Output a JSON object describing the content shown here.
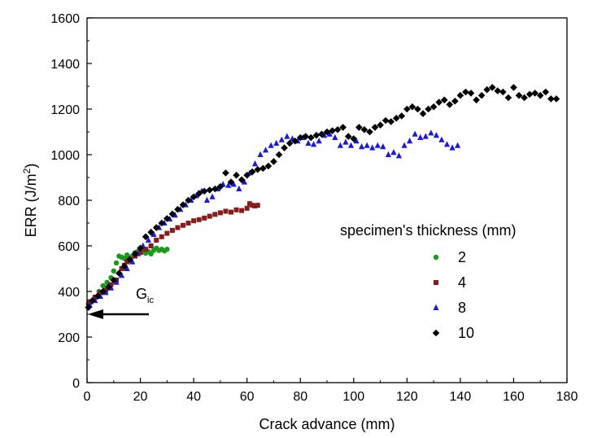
{
  "chart_data": {
    "type": "scatter",
    "title": "",
    "xlabel": "Crack advance (mm)",
    "ylabel": "ERR (J/m2)",
    "ylabel_parts": {
      "main": "ERR  (J/m",
      "sup": "2",
      "end": ")"
    },
    "xlim": [
      0,
      180
    ],
    "ylim": [
      0,
      1600
    ],
    "xticks": [
      0,
      20,
      40,
      60,
      80,
      100,
      120,
      140,
      160,
      180
    ],
    "yticks": [
      0,
      200,
      400,
      600,
      800,
      1000,
      1200,
      1400,
      1600
    ],
    "grid": false,
    "legend": {
      "title": "specimen's thickness (mm)",
      "placement": "center-right"
    },
    "annotation": {
      "main": "G",
      "sub": "ic",
      "value": 300
    },
    "series": [
      {
        "name": "2",
        "color": "#1a9a1a",
        "marker": "circle",
        "points": [
          [
            0.5,
            345
          ],
          [
            1.5,
            352
          ],
          [
            3,
            375
          ],
          [
            4.5,
            400
          ],
          [
            6,
            425
          ],
          [
            7.5,
            440
          ],
          [
            9,
            460
          ],
          [
            10,
            490
          ],
          [
            11,
            525
          ],
          [
            12,
            555
          ],
          [
            13,
            550
          ],
          [
            14,
            545
          ],
          [
            15,
            560
          ],
          [
            16,
            548
          ],
          [
            17,
            555
          ],
          [
            18,
            570
          ],
          [
            19,
            575
          ],
          [
            20,
            572
          ],
          [
            21,
            575
          ],
          [
            22,
            568
          ],
          [
            23,
            575
          ],
          [
            24,
            565
          ],
          [
            25,
            580
          ],
          [
            26,
            590
          ],
          [
            27,
            580
          ],
          [
            28,
            585
          ],
          [
            29,
            578
          ],
          [
            30,
            585
          ]
        ]
      },
      {
        "name": "4",
        "color": "#8b1a1a",
        "marker": "square",
        "points": [
          [
            1,
            355
          ],
          [
            3,
            375
          ],
          [
            5,
            395
          ],
          [
            7,
            405
          ],
          [
            9,
            430
          ],
          [
            11,
            450
          ],
          [
            13,
            500
          ],
          [
            14,
            515
          ],
          [
            15,
            530
          ],
          [
            16,
            540
          ],
          [
            18,
            555
          ],
          [
            20,
            570
          ],
          [
            22,
            585
          ],
          [
            24,
            600
          ],
          [
            26,
            625
          ],
          [
            28,
            640
          ],
          [
            30,
            655
          ],
          [
            32,
            668
          ],
          [
            34,
            680
          ],
          [
            36,
            690
          ],
          [
            38,
            700
          ],
          [
            40,
            710
          ],
          [
            42,
            715
          ],
          [
            44,
            722
          ],
          [
            46,
            730
          ],
          [
            48,
            738
          ],
          [
            50,
            745
          ],
          [
            52,
            752
          ],
          [
            54,
            748
          ],
          [
            56,
            758
          ],
          [
            58,
            755
          ],
          [
            60,
            765
          ],
          [
            61,
            785
          ],
          [
            62,
            778
          ],
          [
            63,
            775
          ],
          [
            64,
            778
          ]
        ]
      },
      {
        "name": "8",
        "color": "#1a1adc",
        "marker": "triangle",
        "points": [
          [
            1,
            340
          ],
          [
            3,
            360
          ],
          [
            5,
            378
          ],
          [
            7,
            395
          ],
          [
            9,
            415
          ],
          [
            11,
            440
          ],
          [
            13,
            470
          ],
          [
            15,
            500
          ],
          [
            17,
            530
          ],
          [
            19,
            565
          ],
          [
            21,
            600
          ],
          [
            23,
            625
          ],
          [
            25,
            650
          ],
          [
            27,
            680
          ],
          [
            29,
            700
          ],
          [
            31,
            718
          ],
          [
            33,
            735
          ],
          [
            35,
            760
          ],
          [
            37,
            780
          ],
          [
            39,
            800
          ],
          [
            41,
            820
          ],
          [
            43,
            840
          ],
          [
            45,
            800
          ],
          [
            47,
            815
          ],
          [
            49,
            850
          ],
          [
            51,
            870
          ],
          [
            53,
            865
          ],
          [
            55,
            870
          ],
          [
            57,
            850
          ],
          [
            59,
            880
          ],
          [
            61,
            920
          ],
          [
            63,
            960
          ],
          [
            65,
            1000
          ],
          [
            67,
            1020
          ],
          [
            69,
            1040
          ],
          [
            71,
            1050
          ],
          [
            73,
            1065
          ],
          [
            75,
            1080
          ],
          [
            77,
            1070
          ],
          [
            79,
            1060
          ],
          [
            81,
            1075
          ],
          [
            83,
            1050
          ],
          [
            85,
            1045
          ],
          [
            87,
            1060
          ],
          [
            89,
            1085
          ],
          [
            91,
            1090
          ],
          [
            93,
            1075
          ],
          [
            95,
            1040
          ],
          [
            97,
            1055
          ],
          [
            99,
            1040
          ],
          [
            101,
            1060
          ],
          [
            103,
            1035
          ],
          [
            105,
            1040
          ],
          [
            107,
            1030
          ],
          [
            109,
            1040
          ],
          [
            111,
            1035
          ],
          [
            113,
            1000
          ],
          [
            115,
            1010
          ],
          [
            117,
            995
          ],
          [
            119,
            1040
          ],
          [
            121,
            1060
          ],
          [
            123,
            1090
          ],
          [
            125,
            1075
          ],
          [
            127,
            1080
          ],
          [
            129,
            1095
          ],
          [
            131,
            1085
          ],
          [
            133,
            1065
          ],
          [
            135,
            1045
          ],
          [
            137,
            1030
          ],
          [
            139,
            1040
          ]
        ]
      },
      {
        "name": "10",
        "color": "#000000",
        "marker": "diamond",
        "points": [
          [
            0.5,
            330
          ],
          [
            2,
            360
          ],
          [
            4,
            380
          ],
          [
            6,
            400
          ],
          [
            8,
            420
          ],
          [
            10,
            450
          ],
          [
            12,
            480
          ],
          [
            14,
            510
          ],
          [
            16,
            540
          ],
          [
            18,
            565
          ],
          [
            20,
            590
          ],
          [
            22,
            640
          ],
          [
            24,
            660
          ],
          [
            26,
            680
          ],
          [
            28,
            700
          ],
          [
            30,
            720
          ],
          [
            32,
            740
          ],
          [
            34,
            760
          ],
          [
            36,
            780
          ],
          [
            38,
            800
          ],
          [
            40,
            815
          ],
          [
            42,
            830
          ],
          [
            44,
            840
          ],
          [
            46,
            845
          ],
          [
            48,
            850
          ],
          [
            50,
            860
          ],
          [
            52,
            920
          ],
          [
            54,
            880
          ],
          [
            56,
            910
          ],
          [
            58,
            890
          ],
          [
            60,
            910
          ],
          [
            62,
            925
          ],
          [
            64,
            935
          ],
          [
            66,
            940
          ],
          [
            68,
            950
          ],
          [
            70,
            970
          ],
          [
            72,
            1000
          ],
          [
            74,
            1030
          ],
          [
            76,
            1050
          ],
          [
            78,
            1060
          ],
          [
            80,
            1075
          ],
          [
            82,
            1080
          ],
          [
            84,
            1075
          ],
          [
            86,
            1085
          ],
          [
            88,
            1090
          ],
          [
            90,
            1100
          ],
          [
            92,
            1105
          ],
          [
            94,
            1110
          ],
          [
            96,
            1120
          ],
          [
            98,
            1080
          ],
          [
            100,
            1070
          ],
          [
            102,
            1120
          ],
          [
            104,
            1110
          ],
          [
            106,
            1100
          ],
          [
            108,
            1120
          ],
          [
            110,
            1130
          ],
          [
            112,
            1150
          ],
          [
            114,
            1145
          ],
          [
            116,
            1160
          ],
          [
            118,
            1170
          ],
          [
            120,
            1200
          ],
          [
            122,
            1210
          ],
          [
            124,
            1200
          ],
          [
            126,
            1180
          ],
          [
            128,
            1200
          ],
          [
            130,
            1210
          ],
          [
            132,
            1230
          ],
          [
            134,
            1240
          ],
          [
            136,
            1220
          ],
          [
            138,
            1235
          ],
          [
            140,
            1260
          ],
          [
            142,
            1275
          ],
          [
            144,
            1270
          ],
          [
            146,
            1240
          ],
          [
            148,
            1260
          ],
          [
            150,
            1285
          ],
          [
            152,
            1295
          ],
          [
            154,
            1280
          ],
          [
            156,
            1275
          ],
          [
            158,
            1250
          ],
          [
            160,
            1295
          ],
          [
            162,
            1260
          ],
          [
            164,
            1250
          ],
          [
            166,
            1265
          ],
          [
            168,
            1270
          ],
          [
            170,
            1260
          ],
          [
            172,
            1275
          ],
          [
            174,
            1245
          ],
          [
            176,
            1245
          ]
        ]
      }
    ]
  }
}
